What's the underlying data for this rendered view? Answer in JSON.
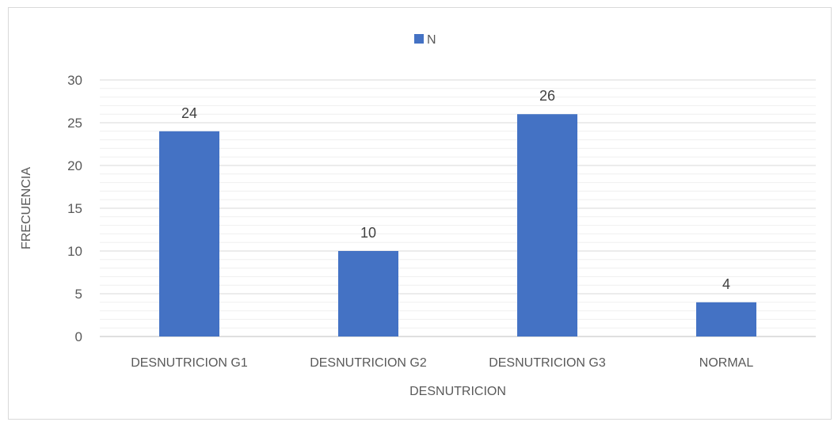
{
  "chart_data": {
    "type": "bar",
    "categories": [
      "DESNUTRICION G1",
      "DESNUTRICION G2",
      "DESNUTRICION G3",
      "NORMAL"
    ],
    "series": [
      {
        "name": "N",
        "values": [
          24,
          10,
          26,
          4
        ],
        "color": "#4472c4"
      }
    ],
    "xlabel": "DESNUTRICION",
    "ylabel": "FRECUENCIA",
    "ylim": [
      0,
      30
    ],
    "yticks": [
      0,
      5,
      10,
      15,
      20,
      25,
      30
    ],
    "grid": true,
    "legend_position": "top",
    "data_labels": true
  }
}
